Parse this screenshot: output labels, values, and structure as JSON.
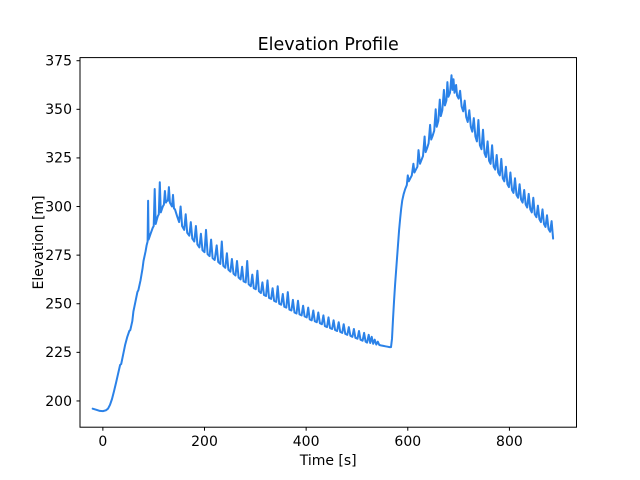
{
  "chart_data": {
    "type": "line",
    "title": "Elevation Profile",
    "xlabel": "Time [s]",
    "ylabel": "Elevation [m]",
    "grid": false,
    "legend": null,
    "line_color": "#2b82e8",
    "axis_color": "#000000",
    "background_color": "#ffffff",
    "xlim": [
      -45,
      932
    ],
    "ylim": [
      186.5,
      376.6
    ],
    "xticks": [
      0,
      200,
      400,
      600,
      800
    ],
    "yticks": [
      200,
      225,
      250,
      275,
      300,
      325,
      350,
      375
    ],
    "series_name": "elevation",
    "points": [
      [
        -20,
        196
      ],
      [
        -12,
        195.4
      ],
      [
        -6,
        194.9
      ],
      [
        0,
        194.8
      ],
      [
        6,
        195.2
      ],
      [
        10,
        196
      ],
      [
        14,
        198
      ],
      [
        18,
        201
      ],
      [
        22,
        205
      ],
      [
        26,
        209.5
      ],
      [
        30,
        214
      ],
      [
        34,
        218.5
      ],
      [
        36,
        219
      ],
      [
        40,
        224
      ],
      [
        44,
        229
      ],
      [
        48,
        233
      ],
      [
        52,
        236
      ],
      [
        54,
        236.5
      ],
      [
        58,
        241
      ],
      [
        60,
        246
      ],
      [
        64,
        251
      ],
      [
        68,
        256
      ],
      [
        70,
        257
      ],
      [
        74,
        262
      ],
      [
        78,
        268
      ],
      [
        80,
        272
      ],
      [
        84,
        277
      ],
      [
        86,
        280
      ],
      [
        88,
        282
      ],
      [
        89,
        303
      ],
      [
        90,
        283
      ],
      [
        94,
        286
      ],
      [
        98,
        289
      ],
      [
        100,
        290
      ],
      [
        102,
        309
      ],
      [
        104,
        291
      ],
      [
        106,
        293
      ],
      [
        108,
        295
      ],
      [
        110,
        296
      ],
      [
        112,
        312.5
      ],
      [
        114,
        297
      ],
      [
        116,
        298.5
      ],
      [
        118,
        300
      ],
      [
        120,
        301
      ],
      [
        122,
        308
      ],
      [
        124,
        302
      ],
      [
        126,
        303
      ],
      [
        128,
        303
      ],
      [
        130,
        310
      ],
      [
        132,
        302
      ],
      [
        134,
        301
      ],
      [
        136,
        300
      ],
      [
        138,
        306
      ],
      [
        140,
        299
      ],
      [
        142,
        298.5
      ],
      [
        146,
        295
      ],
      [
        150,
        292
      ],
      [
        153,
        300
      ],
      [
        156,
        290
      ],
      [
        160,
        288
      ],
      [
        163,
        296
      ],
      [
        166,
        286.5
      ],
      [
        170,
        285
      ],
      [
        173,
        292
      ],
      [
        176,
        283.5
      ],
      [
        180,
        282
      ],
      [
        183,
        290
      ],
      [
        186,
        280.5
      ],
      [
        190,
        279
      ],
      [
        193,
        286
      ],
      [
        196,
        277.5
      ],
      [
        200,
        276.5
      ],
      [
        203,
        288
      ],
      [
        206,
        275.5
      ],
      [
        210,
        274.5
      ],
      [
        213,
        283
      ],
      [
        216,
        273.5
      ],
      [
        220,
        272.5
      ],
      [
        224,
        280
      ],
      [
        227,
        271.5
      ],
      [
        231,
        270.5
      ],
      [
        234,
        282
      ],
      [
        237,
        269.5
      ],
      [
        241,
        268.5
      ],
      [
        244,
        276
      ],
      [
        247,
        267.5
      ],
      [
        251,
        266.5
      ],
      [
        254,
        273
      ],
      [
        257,
        265.5
      ],
      [
        261,
        264.5
      ],
      [
        264,
        272
      ],
      [
        267,
        263.5
      ],
      [
        271,
        262.5
      ],
      [
        274,
        269
      ],
      [
        277,
        261.5
      ],
      [
        281,
        261
      ],
      [
        284,
        272
      ],
      [
        287,
        260
      ],
      [
        291,
        259
      ],
      [
        294,
        265
      ],
      [
        297,
        258
      ],
      [
        301,
        257.5
      ],
      [
        304,
        267
      ],
      [
        307,
        256.5
      ],
      [
        311,
        255.5
      ],
      [
        314,
        261
      ],
      [
        317,
        254.5
      ],
      [
        321,
        254
      ],
      [
        324,
        262
      ],
      [
        327,
        253
      ],
      [
        331,
        252.5
      ],
      [
        334,
        258
      ],
      [
        337,
        251.5
      ],
      [
        341,
        251
      ],
      [
        344,
        259
      ],
      [
        347,
        250
      ],
      [
        351,
        249.5
      ],
      [
        354,
        255
      ],
      [
        357,
        248.5
      ],
      [
        361,
        248
      ],
      [
        364,
        256
      ],
      [
        367,
        247
      ],
      [
        371,
        246.5
      ],
      [
        374,
        252
      ],
      [
        377,
        245.5
      ],
      [
        381,
        245
      ],
      [
        384,
        251.5
      ],
      [
        387,
        244.5
      ],
      [
        391,
        244
      ],
      [
        394,
        249
      ],
      [
        397,
        243.5
      ],
      [
        401,
        243
      ],
      [
        404,
        248
      ],
      [
        407,
        242
      ],
      [
        411,
        241.5
      ],
      [
        414,
        246.5
      ],
      [
        417,
        241
      ],
      [
        421,
        240.5
      ],
      [
        424,
        245.5
      ],
      [
        427,
        240
      ],
      [
        431,
        239.5
      ],
      [
        434,
        244
      ],
      [
        437,
        238.5
      ],
      [
        441,
        238
      ],
      [
        444,
        243
      ],
      [
        447,
        237.5
      ],
      [
        451,
        237
      ],
      [
        454,
        241.5
      ],
      [
        457,
        236.5
      ],
      [
        461,
        236
      ],
      [
        464,
        240.5
      ],
      [
        467,
        235.5
      ],
      [
        471,
        235
      ],
      [
        474,
        239.5
      ],
      [
        477,
        234.5
      ],
      [
        481,
        234
      ],
      [
        484,
        238
      ],
      [
        487,
        233.5
      ],
      [
        491,
        233
      ],
      [
        494,
        237
      ],
      [
        497,
        232.5
      ],
      [
        501,
        232
      ],
      [
        504,
        236
      ],
      [
        507,
        231.5
      ],
      [
        511,
        231
      ],
      [
        514,
        235
      ],
      [
        517,
        230.5
      ],
      [
        520,
        230
      ],
      [
        523,
        234
      ],
      [
        526,
        229.8
      ],
      [
        529,
        233
      ],
      [
        532,
        229.4
      ],
      [
        535,
        231.5
      ],
      [
        538,
        229
      ],
      [
        541,
        230.5
      ],
      [
        544,
        228.8
      ],
      [
        548,
        228.5
      ],
      [
        552,
        228.3
      ],
      [
        556,
        228.1
      ],
      [
        560,
        227.9
      ],
      [
        564,
        227.7
      ],
      [
        567,
        227.7
      ],
      [
        569,
        232
      ],
      [
        571,
        242
      ],
      [
        573,
        252
      ],
      [
        575,
        260
      ],
      [
        577,
        267
      ],
      [
        579,
        274
      ],
      [
        581,
        281
      ],
      [
        583,
        288
      ],
      [
        585,
        294
      ],
      [
        587,
        299
      ],
      [
        589,
        303
      ],
      [
        592,
        306.5
      ],
      [
        595,
        309
      ],
      [
        598,
        311
      ],
      [
        600,
        316
      ],
      [
        602,
        313
      ],
      [
        605,
        314.5
      ],
      [
        608,
        316
      ],
      [
        611,
        322
      ],
      [
        613,
        317.5
      ],
      [
        616,
        319
      ],
      [
        619,
        320.5
      ],
      [
        621,
        329
      ],
      [
        624,
        322
      ],
      [
        627,
        324
      ],
      [
        630,
        326
      ],
      [
        633,
        336
      ],
      [
        635,
        328
      ],
      [
        638,
        330
      ],
      [
        641,
        332.5
      ],
      [
        644,
        342
      ],
      [
        646,
        334.5
      ],
      [
        649,
        336.5
      ],
      [
        652,
        339
      ],
      [
        655,
        350
      ],
      [
        657,
        341
      ],
      [
        660,
        344
      ],
      [
        663,
        355
      ],
      [
        665,
        346.5
      ],
      [
        668,
        349.5
      ],
      [
        671,
        360
      ],
      [
        673,
        352
      ],
      [
        676,
        354.5
      ],
      [
        678,
        364
      ],
      [
        680,
        356.5
      ],
      [
        683,
        358.5
      ],
      [
        686,
        367.5
      ],
      [
        688,
        360
      ],
      [
        690,
        365.5
      ],
      [
        692,
        358.5
      ],
      [
        695,
        362.5
      ],
      [
        697,
        357
      ],
      [
        700,
        355.5
      ],
      [
        703,
        359.5
      ],
      [
        706,
        351.5
      ],
      [
        709,
        349
      ],
      [
        712,
        354.5
      ],
      [
        715,
        346
      ],
      [
        718,
        343.5
      ],
      [
        721,
        349.5
      ],
      [
        724,
        341
      ],
      [
        727,
        338.5
      ],
      [
        730,
        345.5
      ],
      [
        733,
        336
      ],
      [
        736,
        333.5
      ],
      [
        739,
        344.5
      ],
      [
        742,
        331.5
      ],
      [
        745,
        329.5
      ],
      [
        748,
        339.5
      ],
      [
        751,
        327.5
      ],
      [
        754,
        325.5
      ],
      [
        757,
        333.5
      ],
      [
        760,
        323.5
      ],
      [
        763,
        322
      ],
      [
        766,
        331.5
      ],
      [
        769,
        320.5
      ],
      [
        772,
        319
      ],
      [
        775,
        326.5
      ],
      [
        778,
        317.5
      ],
      [
        781,
        316
      ],
      [
        784,
        324.5
      ],
      [
        787,
        314.5
      ],
      [
        790,
        313
      ],
      [
        793,
        320.5
      ],
      [
        796,
        311.5
      ],
      [
        799,
        310
      ],
      [
        802,
        317.5
      ],
      [
        805,
        308.5
      ],
      [
        808,
        307
      ],
      [
        811,
        314.5
      ],
      [
        814,
        306
      ],
      [
        817,
        304.5
      ],
      [
        820,
        311.5
      ],
      [
        823,
        303.5
      ],
      [
        826,
        302
      ],
      [
        829,
        308.5
      ],
      [
        832,
        301
      ],
      [
        835,
        299.5
      ],
      [
        838,
        306.5
      ],
      [
        841,
        298.5
      ],
      [
        844,
        297
      ],
      [
        847,
        304.5
      ],
      [
        850,
        296
      ],
      [
        853,
        294.5
      ],
      [
        856,
        300.5
      ],
      [
        859,
        293.5
      ],
      [
        862,
        292
      ],
      [
        865,
        298.5
      ],
      [
        868,
        291
      ],
      [
        871,
        289.5
      ],
      [
        874,
        295.5
      ],
      [
        877,
        288.5
      ],
      [
        880,
        287
      ],
      [
        883,
        292.5
      ],
      [
        886,
        283.5
      ]
    ]
  }
}
